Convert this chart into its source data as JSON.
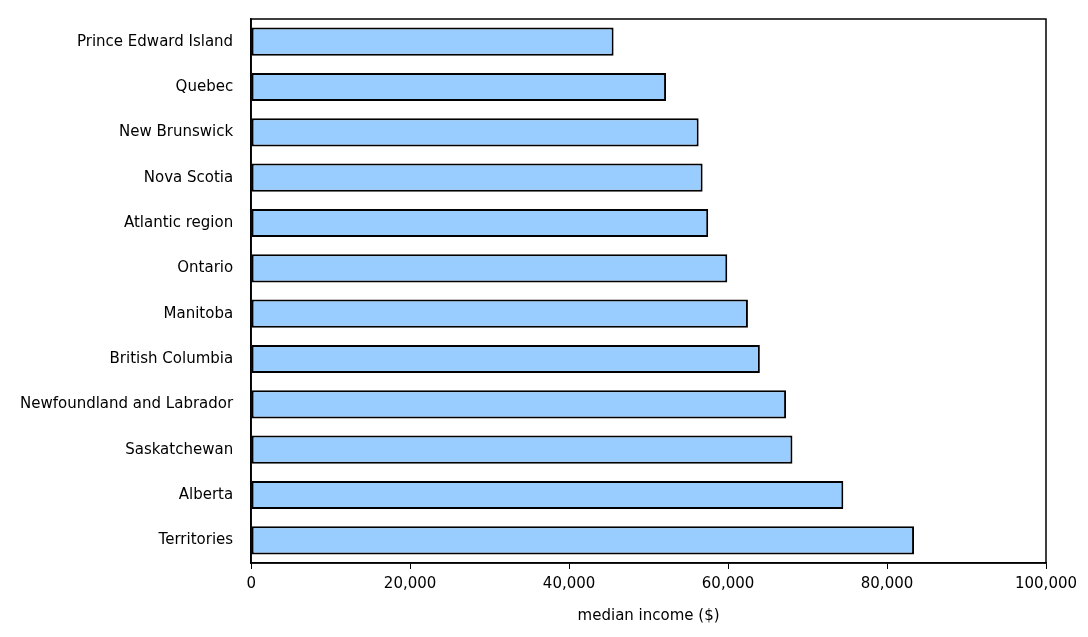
{
  "chart_data": {
    "type": "bar",
    "orientation": "horizontal",
    "xlabel": "median income ($)",
    "categories": [
      "Prince Edward Island",
      "Quebec",
      "New Brunswick",
      "Nova Scotia",
      "Atlantic region",
      "Ontario",
      "Manitoba",
      "British Columbia",
      "Newfoundland and Labrador",
      "Saskatchewan",
      "Alberta",
      "Territories"
    ],
    "values": [
      45600,
      52200,
      56300,
      56800,
      57500,
      59900,
      62500,
      64000,
      67300,
      68100,
      74500,
      83400
    ],
    "color": "#99ccff",
    "xlim": [
      0,
      100000
    ],
    "xticks": [
      {
        "value": 0,
        "label": "0"
      },
      {
        "value": 20000,
        "label": "20,000"
      },
      {
        "value": 40000,
        "label": "40,000"
      },
      {
        "value": 60000,
        "label": "60,000"
      },
      {
        "value": 80000,
        "label": "80,000"
      },
      {
        "value": 100000,
        "label": "100,000"
      }
    ],
    "grid": false,
    "legend": false
  }
}
